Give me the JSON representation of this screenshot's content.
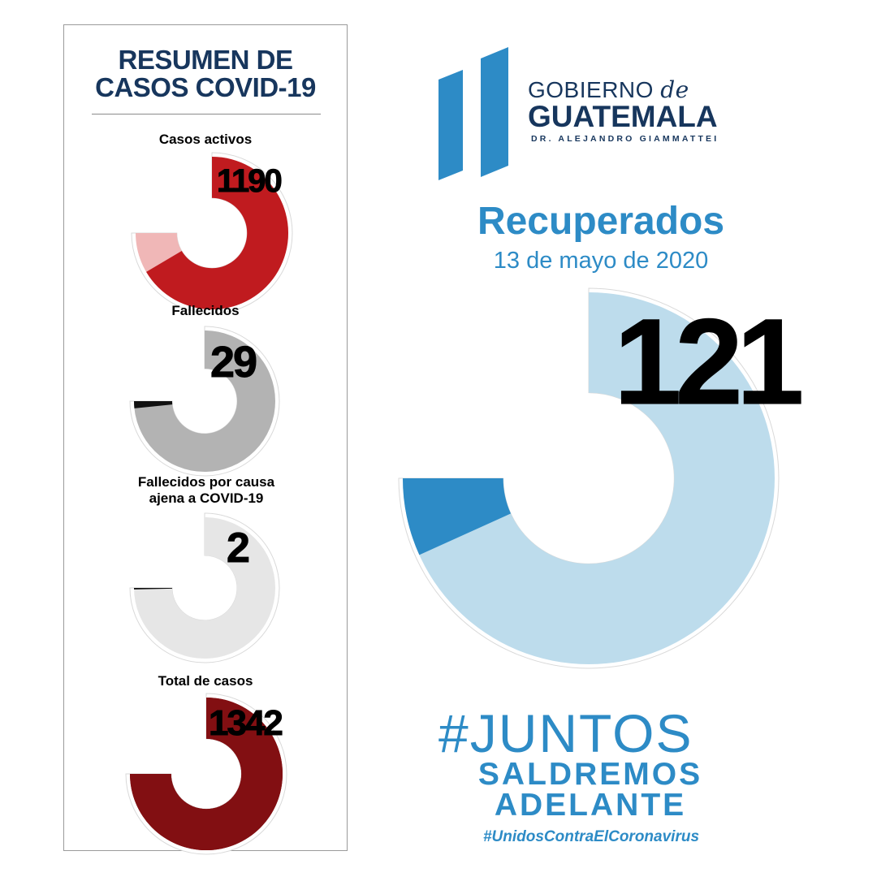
{
  "summary": {
    "title_line1": "RESUMEN DE",
    "title_line2": "CASOS COVID-19"
  },
  "logo": {
    "line1": "GOBIERNO",
    "line1_de": "de",
    "line2": "GUATEMALA",
    "line3": "DR. ALEJANDRO GIAMMATTEI"
  },
  "recovered": {
    "title": "Recuperados",
    "date": "13 de mayo de 2020"
  },
  "slogan": {
    "juntos": "#JUNTOS",
    "line2": "SALDREMOS",
    "line3": "ADELANTE",
    "hashtag": "#UnidosContraElCoronavirus"
  },
  "colors": {
    "navy": "#17365d",
    "brand_blue": "#2d8bc6",
    "active_red": "#c01b1f",
    "total_maroon": "#820f12"
  },
  "chart_data": [
    {
      "type": "pie",
      "label": "Casos activos",
      "value": 1190,
      "total": 1342,
      "color": "#c01b1f",
      "rest_color": "#f0b7b7",
      "label_color": "#c01b1f"
    },
    {
      "type": "pie",
      "label": "Fallecidos",
      "value": 29,
      "total": 1342,
      "color": "#111111",
      "rest_color": "#b3b3b3",
      "label_color": "#111111"
    },
    {
      "type": "pie",
      "label": "Fallecidos por causa ajena a COVID-19",
      "value": 2,
      "total": 1342,
      "color": "#111111",
      "rest_color": "#e6e6e6",
      "label_color": "#111111"
    },
    {
      "type": "pie",
      "label": "Total de casos",
      "value": 1342,
      "total": 1342,
      "color": "#820f12",
      "rest_color": "#820f12",
      "label_color": "#820f12"
    },
    {
      "type": "pie",
      "label": "Recuperados",
      "value": 121,
      "total": 1342,
      "color": "#2d8bc6",
      "rest_color": "#bddcec",
      "label_color": "#2d8bc6"
    }
  ]
}
